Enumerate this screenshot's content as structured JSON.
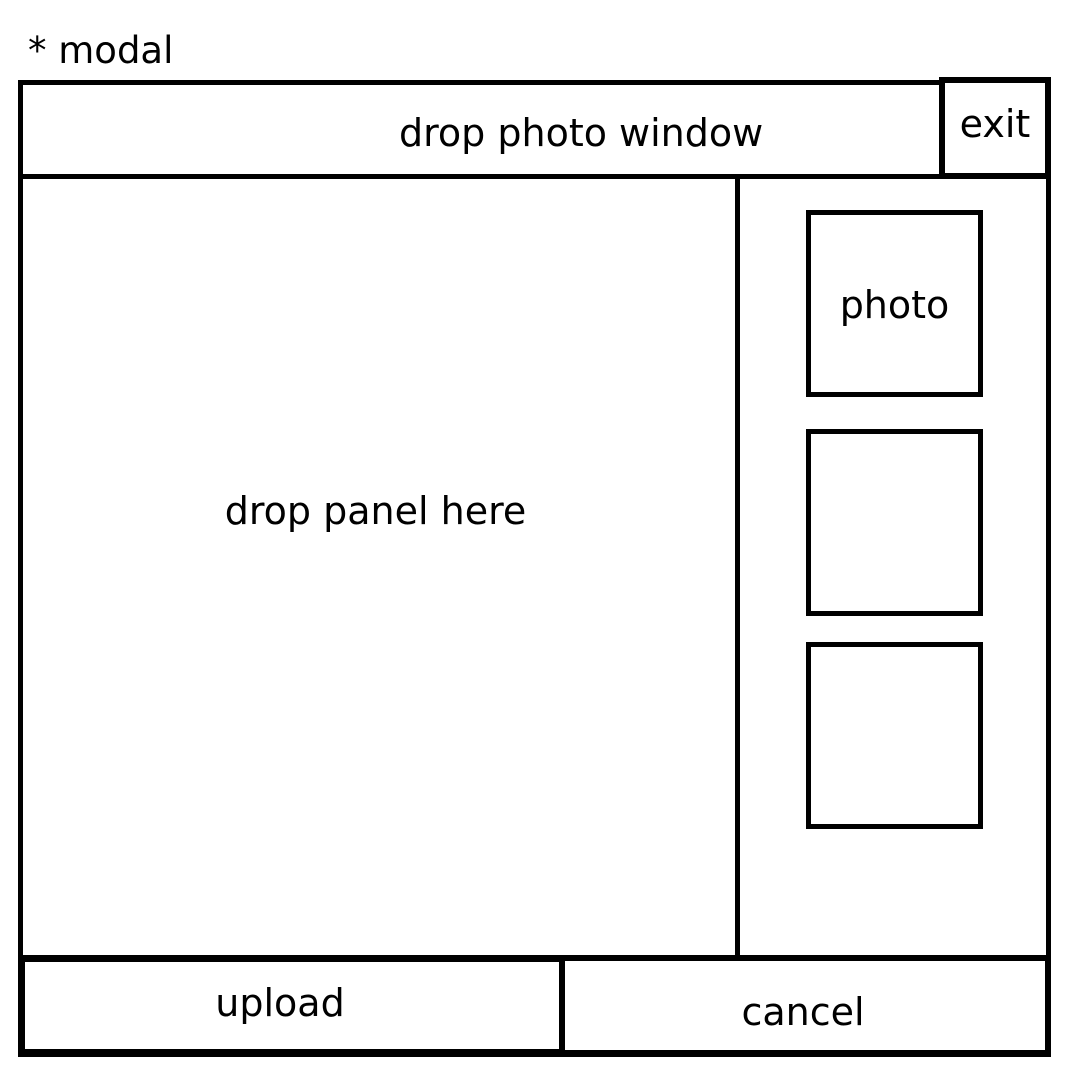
{
  "annotation": "* modal",
  "modal": {
    "title": "drop photo window",
    "exit_label": "exit",
    "drop_panel_text": "drop panel here",
    "thumbnails": [
      {
        "label": "photo"
      },
      {
        "label": ""
      },
      {
        "label": ""
      }
    ],
    "upload_label": "upload",
    "cancel_label": "cancel"
  }
}
